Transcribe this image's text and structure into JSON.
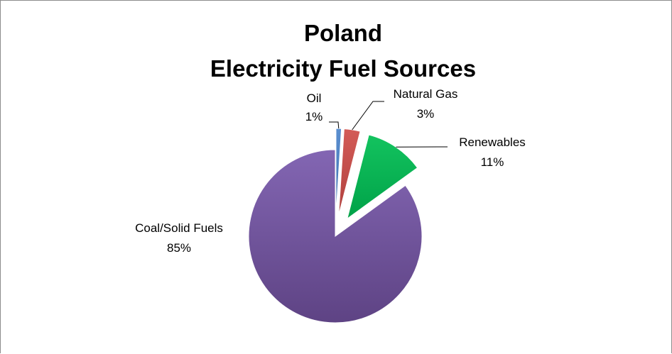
{
  "chart_data": {
    "type": "pie",
    "title": [
      "Poland",
      "Electricity Fuel Sources"
    ],
    "slices": [
      {
        "name": "Oil",
        "value": 1,
        "label": "1%",
        "color": "#4f81bd",
        "exploded": true
      },
      {
        "name": "Natural Gas",
        "value": 3,
        "label": "3%",
        "color": "#c0504d",
        "exploded": true
      },
      {
        "name": "Renewables",
        "value": 11,
        "label": "11%",
        "color": "#00b050",
        "exploded": true
      },
      {
        "name": "Coal/Solid Fuels",
        "value": 85,
        "label": "85%",
        "color": "#7f5fa8",
        "exploded": false
      }
    ],
    "start_angle_deg": 0,
    "direction": "clockwise",
    "legend": "none",
    "data_labels": "outside with leader lines"
  }
}
